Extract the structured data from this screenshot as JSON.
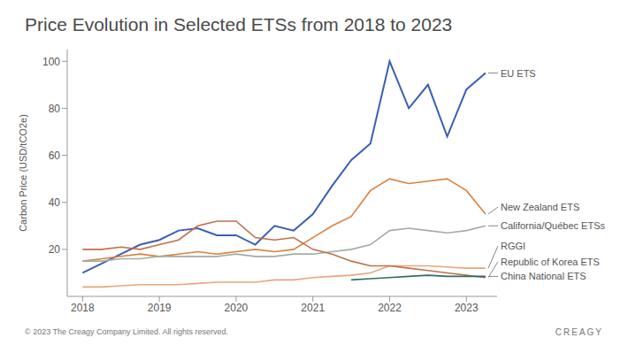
{
  "chart_data": {
    "type": "line",
    "title": "Price Evolution in Selected ETSs from 2018 to 2023",
    "y_label": "Carbon Price (USD/tCO2e)",
    "x": [
      2018,
      2018.25,
      2018.5,
      2018.75,
      2019,
      2019.25,
      2019.5,
      2019.75,
      2020,
      2020.25,
      2020.5,
      2020.75,
      2021,
      2021.25,
      2021.5,
      2021.75,
      2022,
      2022.25,
      2022.5,
      2022.75,
      2023,
      2023.25
    ],
    "xlim": [
      2017.8,
      2023.4
    ],
    "xticks": [
      2018,
      2019,
      2020,
      2021,
      2022,
      2023
    ],
    "ylim": [
      0,
      105
    ],
    "yticks": [
      20,
      40,
      60,
      80,
      100
    ],
    "grid": false,
    "series": [
      {
        "name": "EU ETS",
        "color": "#3b5fb5",
        "values": [
          10,
          14,
          18,
          22,
          24,
          28,
          29,
          26,
          26,
          22,
          30,
          28,
          35,
          47,
          58,
          65,
          100,
          80,
          90,
          68,
          88,
          95
        ]
      },
      {
        "name": "New Zealand ETS",
        "color": "#d9823e",
        "values": [
          15,
          16,
          17,
          18,
          17,
          18,
          19,
          18,
          19,
          20,
          19,
          20,
          25,
          30,
          34,
          45,
          50,
          48,
          49,
          50,
          45,
          35
        ]
      },
      {
        "name": "California/Québec ETSs",
        "color": "#a3ada3",
        "values": [
          15,
          15,
          16,
          16,
          17,
          17,
          17,
          17,
          18,
          17,
          17,
          18,
          18,
          19,
          20,
          22,
          28,
          29,
          28,
          27,
          28,
          30
        ]
      },
      {
        "name": "RGGI",
        "color": "#e8a67c",
        "values": [
          4,
          4,
          4.5,
          5,
          5,
          5,
          5.5,
          6,
          6,
          6,
          7,
          7,
          8,
          8.5,
          9,
          10,
          13,
          13,
          13,
          12.5,
          12,
          12
        ]
      },
      {
        "name": "Republic of Korea ETS",
        "color": "#c2704c",
        "values": [
          20,
          20,
          21,
          20,
          22,
          24,
          30,
          32,
          32,
          25,
          24,
          25,
          20,
          18,
          15,
          13,
          13,
          12,
          11,
          10,
          9,
          8
        ]
      },
      {
        "name": "China National ETS",
        "color": "#2f6e60",
        "values": [
          null,
          null,
          null,
          null,
          null,
          null,
          null,
          null,
          null,
          null,
          null,
          null,
          null,
          null,
          7,
          7.5,
          8,
          8.5,
          9,
          8.5,
          8.5,
          8.5
        ]
      }
    ],
    "footer": "© 2023 The Creagy Company Limited. All rights reserved.",
    "logo": "CREAGY"
  }
}
